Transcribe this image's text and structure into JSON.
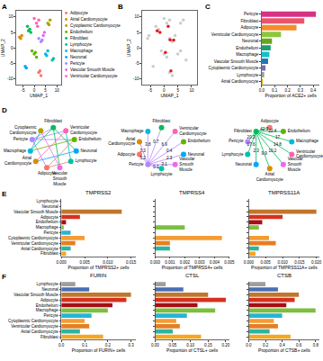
{
  "chart_data": [
    {
      "panel": "A",
      "type": "scatter",
      "xlabel": "UMAP_1",
      "ylabel": "UMAP_2",
      "xlim": [
        -8,
        12
      ],
      "ylim": [
        -12,
        12
      ],
      "xticks": [
        -5,
        0,
        5,
        10
      ],
      "yticks": [
        -10,
        -5,
        0,
        5,
        10
      ],
      "legend": "right",
      "series": [
        {
          "name": "Adipocyte",
          "color": "#F8766D",
          "x": [
            2,
            3,
            2.5
          ],
          "y": [
            -8,
            -9,
            -7.5
          ]
        },
        {
          "name": "Atrial Cardiomyocyte",
          "color": "#DB8E00",
          "x": [
            -6,
            -5.5,
            -6.5
          ],
          "y": [
            3,
            4,
            3.5
          ]
        },
        {
          "name": "Cytoplasmic Cardiomyocyte",
          "color": "#AEA200",
          "x": [
            6,
            7,
            6.5
          ],
          "y": [
            8,
            9,
            7.5
          ]
        },
        {
          "name": "Endothelium",
          "color": "#64B200",
          "x": [
            0,
            1,
            -1,
            0.5
          ],
          "y": [
            -2,
            -3,
            -1,
            -1.5
          ]
        },
        {
          "name": "Fibroblast",
          "color": "#00BD5C",
          "x": [
            -2,
            -3,
            -1.5,
            -2.5
          ],
          "y": [
            6,
            7,
            5,
            5.5
          ]
        },
        {
          "name": "Lymphocyte",
          "color": "#00C1A7",
          "x": [
            8,
            8.5
          ],
          "y": [
            -4,
            -3.5
          ]
        },
        {
          "name": "Macrophage",
          "color": "#00BADE",
          "x": [
            5,
            6,
            5.5
          ],
          "y": [
            -2,
            -1,
            -2.5
          ]
        },
        {
          "name": "Neuronal",
          "color": "#00A6FF",
          "x": [
            -4,
            -3.5
          ],
          "y": [
            -6,
            -6.5
          ]
        },
        {
          "name": "Pericyte",
          "color": "#B385FF",
          "x": [
            3,
            2,
            3.5
          ],
          "y": [
            2,
            3,
            2.5
          ]
        },
        {
          "name": "Vascular Smooth Muscle",
          "color": "#EF67EB",
          "x": [
            4,
            4.5
          ],
          "y": [
            4,
            5
          ]
        },
        {
          "name": "Ventricular Cardiomyocyte",
          "color": "#FF63B6",
          "x": [
            1,
            2,
            0,
            1.5
          ],
          "y": [
            8,
            9,
            9.5,
            7
          ]
        }
      ]
    },
    {
      "panel": "B",
      "type": "scatter",
      "xlabel": "UMAP_1",
      "ylabel": "UMAP_2",
      "xlim": [
        -8,
        12
      ],
      "ylim": [
        -12,
        12
      ],
      "xticks": [
        -5,
        0,
        5,
        10
      ],
      "yticks": [
        -10,
        -5,
        0,
        5,
        10
      ],
      "series": [
        {
          "color": "#cccccc",
          "x": [
            2,
            3,
            -6,
            -5.5,
            6,
            7,
            0,
            1,
            -1,
            -2,
            -3,
            8,
            5,
            6,
            -4,
            3,
            2,
            4,
            1,
            2,
            0
          ],
          "y": [
            -8,
            -9,
            3,
            4,
            8,
            9,
            -2,
            -3,
            -1,
            6,
            7,
            -4,
            -2,
            -1,
            -6,
            2,
            3,
            4,
            8,
            9,
            9.5
          ]
        },
        {
          "color": "#e41a1c",
          "x": [
            2.5,
            -1.5,
            -2.5,
            3.5,
            2.2,
            1.5,
            0.5
          ],
          "y": [
            -7.5,
            5,
            5.5,
            2.5,
            2.6,
            7,
            -1.5
          ]
        }
      ]
    },
    {
      "panel": "C",
      "type": "bar",
      "orientation": "horizontal",
      "xlabel": "Proportion of ACE2+ cells",
      "categories": [
        "Pericyte",
        "Fibroblast",
        "Adipocyte",
        "Ventricular Cardiomyocyte",
        "Neuronal",
        "Endothelium",
        "Macrophage",
        "Vascular Smooth Muscle",
        "Cytoplasmic Cardiomyocyte",
        "Lymphocyte",
        "Atrial Cardiomyocyte"
      ],
      "values": [
        0.42,
        0.33,
        0.27,
        0.15,
        0.08,
        0.07,
        0.06,
        0.05,
        0.03,
        0.02,
        0.01
      ],
      "colors": [
        "#d63384",
        "#e8556b",
        "#f28e2b",
        "#8cc63f",
        "#66a61e",
        "#1b9e77",
        "#17becf",
        "#1f78b4",
        "#7570b3",
        "#9e9e9e",
        "#e6ab02"
      ],
      "xlim": [
        0,
        0.45
      ],
      "xticks": [
        {
          "value": 0,
          "label": "0.0"
        },
        0.1,
        0.2,
        0.3,
        0.4
      ]
    },
    {
      "panel": "D",
      "type": "network",
      "tick_labels": false,
      "data_labels": false,
      "nodes": [
        {
          "label": "Fibroblast",
          "color": "#00BD5C"
        },
        {
          "label": "Ventricular Cardiomyocyte",
          "color": "#FF63B6"
        },
        {
          "label": "Endothelium",
          "color": "#64B200"
        },
        {
          "label": "Neuronal",
          "color": "#00A6FF"
        },
        {
          "label": "Lymphocyte",
          "color": "#00C1A7"
        },
        {
          "label": "Vascular Smooth Muscle",
          "color": "#EF67EB"
        },
        {
          "label": "Adipocyte",
          "color": "#F8766D"
        },
        {
          "label": "Atrial Cardiomyocyte",
          "color": "#DB8E00"
        },
        {
          "label": "Macrophage",
          "color": "#00BADE"
        },
        {
          "label": "Pericyte",
          "color": "#B385FF"
        },
        {
          "label": "Cytoplasmic Cardiomyocyte",
          "color": "#AEA200"
        }
      ],
      "edges": [
        {
          "from": "Pericyte",
          "to": "Fibroblast"
        },
        {
          "from": "Pericyte",
          "to": "Adipocyte"
        },
        {
          "from": "Pericyte",
          "to": "Endothelium"
        },
        {
          "from": "Pericyte",
          "to": "Ventricular Cardiomyocyte"
        },
        {
          "from": "Fibroblast",
          "to": "Macrophage"
        },
        {
          "from": "Fibroblast",
          "to": "Neuronal"
        },
        {
          "from": "Fibroblast",
          "to": "Vascular Smooth Muscle"
        },
        {
          "from": "Adipocyte",
          "to": "Endothelium"
        },
        {
          "from": "Adipocyte",
          "to": "Lymphocyte"
        },
        {
          "from": "Ventricular Cardiomyocyte",
          "to": "Atrial Cardiomyocyte"
        },
        {
          "from": "Endothelium",
          "to": "Macrophage"
        },
        {
          "from": "Macrophage",
          "to": "Cytoplasmic Cardiomyocyte"
        },
        {
          "from": "Neuronal",
          "to": "Atrial Cardiomyocyte"
        },
        {
          "from": "Vascular Smooth Muscle",
          "to": "Cytoplasmic Cardiomyocyte"
        },
        {
          "from": "Lymphocyte",
          "to": "Ventricular Cardiomyocyte"
        }
      ]
    },
    {
      "type": "network",
      "tick_labels": false,
      "data_labels": true,
      "nodes": [
        {
          "label": "Fibroblast",
          "color": "#00BD5C"
        },
        {
          "label": "Ventricular Cardiomyocyte",
          "color": "#FF63B6"
        },
        {
          "label": "Endothelium",
          "color": "#64B200"
        },
        {
          "label": "Neuronal",
          "color": "#00A6FF"
        },
        {
          "label": "Vascular Smooth Muscle",
          "color": "#EF67EB"
        },
        {
          "label": "Lymphocyte",
          "color": "#00C1A7"
        },
        {
          "label": "Pericyte",
          "color": "#B385FF"
        },
        {
          "label": "Adipocyte",
          "color": "#F8766D"
        },
        {
          "label": "Atrial Cardiomyocyte",
          "color": "#DB8E00"
        },
        {
          "label": "Macrophage",
          "color": "#00BADE"
        }
      ],
      "edges": [
        {
          "from": "Pericyte",
          "to": "Fibroblast",
          "value": 0.7
        },
        {
          "from": "Pericyte",
          "to": "Ventricular Cardiomyocyte",
          "value": 6.9
        },
        {
          "from": "Pericyte",
          "to": "Endothelium",
          "value": 0.4
        },
        {
          "from": "Pericyte",
          "to": "Neuronal",
          "value": 2.3
        },
        {
          "from": "Pericyte",
          "to": "Vascular Smooth Muscle",
          "value": 3.1
        },
        {
          "from": "Pericyte",
          "to": "Lymphocyte",
          "value": 0.3
        },
        {
          "from": "Pericyte",
          "to": "Adipocyte",
          "value": 5.2
        },
        {
          "from": "Pericyte",
          "to": "Atrial Cardiomyocyte",
          "value": 3.3
        },
        {
          "from": "Pericyte",
          "to": "Macrophage",
          "value": 3.8
        }
      ]
    },
    {
      "type": "network",
      "tick_labels": false,
      "data_labels": true,
      "nodes": [
        {
          "label": "Adipocyte",
          "color": "#F8766D"
        },
        {
          "label": "Endothelium",
          "color": "#64B200"
        },
        {
          "label": "Macrophage",
          "color": "#00BADE"
        },
        {
          "label": "Ventricular Cardiomyocyte",
          "color": "#FF63B6"
        },
        {
          "label": "Vascular Smooth Muscle",
          "color": "#EF67EB"
        },
        {
          "label": "Atrial Cardiomyocyte",
          "color": "#DB8E00"
        },
        {
          "label": "Neuronal",
          "color": "#00A6FF"
        },
        {
          "label": "Lymphocyte",
          "color": "#00C1A7"
        },
        {
          "label": "Pericyte",
          "color": "#B385FF"
        },
        {
          "label": "Fibroblast",
          "color": "#00BD5C"
        }
      ],
      "edges": [
        {
          "from": "Fibroblast",
          "to": "Adipocyte",
          "value": 42.3
        },
        {
          "from": "Fibroblast",
          "to": "Endothelium",
          "value": 22.4
        },
        {
          "from": "Fibroblast",
          "to": "Macrophage",
          "value": 17.0
        },
        {
          "from": "Fibroblast",
          "to": "Ventricular Cardiomyocyte",
          "value": 14.8
        },
        {
          "from": "Fibroblast",
          "to": "Vascular Smooth Muscle",
          "value": 10.2
        },
        {
          "from": "Fibroblast",
          "to": "Atrial Cardiomyocyte",
          "value": 9.9
        },
        {
          "from": "Fibroblast",
          "to": "Neuronal",
          "value": 2.3
        },
        {
          "from": "Fibroblast",
          "to": "Lymphocyte",
          "value": 17.6
        },
        {
          "from": "Fibroblast",
          "to": "Pericyte",
          "value": 20.3
        }
      ]
    },
    {
      "panel": "E",
      "type": "bar",
      "orientation": "horizontal",
      "title": "TMPRSS2",
      "xlabel": "Proportion of TMPRSS2+ cells",
      "categories": [
        "Lymphocyte",
        "Neuronal",
        "Vascular Smooth Muscle",
        "Adipocyte",
        "Endothelium",
        "Macrophage",
        "Pericyte",
        "Cytoplasmic Cardiomyocyte",
        "Ventricular Cardiomyocyte",
        "Atrial Cardiomyocyte",
        "Fibroblast"
      ],
      "values": [
        0,
        0,
        0.013,
        0.004,
        0.001,
        0.0005,
        0.002,
        0.005,
        0.003,
        0.002,
        0.001
      ],
      "colors": [
        "#9e9e9e",
        "#4a6fb5",
        "#c0762b",
        "#d7301f",
        "#a50f15",
        "#7cbf3f",
        "#25b5d6",
        "#f39c34",
        "#e67e22",
        "#2bb5a0",
        "#f5a623"
      ],
      "xlim": [
        0,
        0.016
      ],
      "xticks": [
        {
          "value": 0,
          "label": "0.000"
        },
        {
          "value": 0.005,
          "label": "0.005"
        },
        {
          "value": 0.01,
          "label": "0.010"
        },
        {
          "value": 0.015,
          "label": "0.015"
        }
      ]
    },
    {
      "type": "bar",
      "orientation": "horizontal",
      "title": "TMPRSS4",
      "xlabel": "Proportion of TMPRSS4+ cells",
      "tick_labels": "x",
      "categories": [
        "Lymphocyte",
        "Neuronal",
        "Vascular Smooth Muscle",
        "Adipocyte",
        "Endothelium",
        "Macrophage",
        "Pericyte",
        "Cytoplasmic Cardiomyocyte",
        "Ventricular Cardiomyocyte",
        "Atrial Cardiomyocyte",
        "Fibroblast"
      ],
      "values": [
        0,
        0,
        0,
        0,
        0,
        0.002,
        0,
        0.0045,
        0.001,
        0.001,
        0
      ],
      "colors": [
        "#9e9e9e",
        "#4a6fb5",
        "#c0762b",
        "#d7301f",
        "#a50f15",
        "#7cbf3f",
        "#25b5d6",
        "#f39c34",
        "#e67e22",
        "#2bb5a0",
        "#f5a623"
      ],
      "xlim": [
        0,
        0.005
      ],
      "xticks": [
        {
          "value": 0,
          "label": "0.000"
        },
        {
          "value": 0.001,
          "label": "0.001"
        },
        {
          "value": 0.002,
          "label": "0.002"
        },
        {
          "value": 0.003,
          "label": "0.003"
        },
        {
          "value": 0.004,
          "label": "0.004"
        },
        {
          "value": 0.005,
          "label": "0.005"
        }
      ]
    },
    {
      "type": "bar",
      "orientation": "horizontal",
      "title": "TMPRSS11A",
      "xlabel": "Proportion of TMPRSS11A+ cells",
      "tick_labels": "x",
      "categories": [
        "Lymphocyte",
        "Neuronal",
        "Vascular Smooth Muscle",
        "Adipocyte",
        "Endothelium",
        "Macrophage",
        "Pericyte",
        "Cytoplasmic Cardiomyocyte",
        "Ventricular Cardiomyocyte",
        "Atrial Cardiomyocyte",
        "Fibroblast"
      ],
      "values": [
        0,
        0,
        0.02,
        0.01,
        0.004,
        0.003,
        0,
        0.006,
        0.008,
        0.003,
        0.002
      ],
      "colors": [
        "#9e9e9e",
        "#4a6fb5",
        "#c0762b",
        "#d7301f",
        "#a50f15",
        "#7cbf3f",
        "#25b5d6",
        "#f39c34",
        "#e67e22",
        "#2bb5a0",
        "#f5a623"
      ],
      "xlim": [
        0,
        0.021
      ],
      "xticks": [
        {
          "value": 0,
          "label": "0.000"
        },
        {
          "value": 0.005,
          "label": "0.005"
        },
        {
          "value": 0.01,
          "label": "0.010"
        },
        {
          "value": 0.015,
          "label": "0.015"
        },
        {
          "value": 0.02,
          "label": "0.020"
        }
      ]
    },
    {
      "panel": "F",
      "type": "bar",
      "orientation": "horizontal",
      "title": "FURIN",
      "xlabel": "Proportion of FURIN+ cells",
      "categories": [
        "Lymphocyte",
        "Neuronal",
        "Vascular Smooth Muscle",
        "Adipocyte",
        "Endothelium",
        "Macrophage",
        "Pericyte",
        "Cytoplasmic Cardiomyocyte",
        "Ventricular Cardiomyocyte",
        "Atrial Cardiomyocyte",
        "Fibroblast"
      ],
      "values": [
        0.06,
        0.12,
        0.3,
        0.28,
        0.22,
        0.2,
        0.13,
        0.1,
        0.12,
        0.08,
        0.18
      ],
      "colors": [
        "#9e9e9e",
        "#4a6fb5",
        "#c0762b",
        "#d7301f",
        "#a50f15",
        "#7cbf3f",
        "#25b5d6",
        "#f39c34",
        "#e67e22",
        "#2bb5a0",
        "#f5a623"
      ],
      "xlim": [
        0,
        0.32
      ],
      "xticks": [
        {
          "value": 0,
          "label": "0.0"
        },
        0.1,
        0.2,
        0.3
      ]
    },
    {
      "type": "bar",
      "orientation": "horizontal",
      "title": "CTSL",
      "xlabel": "Proportion of CTSL+ cells",
      "tick_labels": "x",
      "categories": [
        "Lymphocyte",
        "Neuronal",
        "Vascular Smooth Muscle",
        "Adipocyte",
        "Endothelium",
        "Macrophage",
        "Pericyte",
        "Cytoplasmic Cardiomyocyte",
        "Ventricular Cardiomyocyte",
        "Atrial Cardiomyocyte",
        "Fibroblast"
      ],
      "values": [
        0.03,
        0.08,
        0.15,
        0.2,
        0.12,
        0.17,
        0.09,
        0.06,
        0.07,
        0.05,
        0.13
      ],
      "colors": [
        "#9e9e9e",
        "#4a6fb5",
        "#c0762b",
        "#d7301f",
        "#a50f15",
        "#7cbf3f",
        "#25b5d6",
        "#f39c34",
        "#e67e22",
        "#2bb5a0",
        "#f5a623"
      ],
      "xlim": [
        0,
        0.21
      ],
      "xticks": [
        {
          "value": 0,
          "label": "0.00"
        },
        0.05,
        {
          "value": 0.1,
          "label": "0.10"
        },
        0.15,
        {
          "value": 0.2,
          "label": "0.20"
        }
      ]
    },
    {
      "type": "bar",
      "orientation": "horizontal",
      "title": "CTSB",
      "xlabel": "Proportion of CTSB+ cells",
      "tick_labels": "x",
      "categories": [
        "Lymphocyte",
        "Neuronal",
        "Vascular Smooth Muscle",
        "Adipocyte",
        "Endothelium",
        "Macrophage",
        "Pericyte",
        "Cytoplasmic Cardiomyocyte",
        "Ventricular Cardiomyocyte",
        "Atrial Cardiomyocyte",
        "Fibroblast"
      ],
      "values": [
        0.2,
        0.35,
        0.6,
        0.55,
        0.45,
        0.8,
        0.4,
        0.3,
        0.35,
        0.25,
        0.5
      ],
      "colors": [
        "#9e9e9e",
        "#4a6fb5",
        "#c0762b",
        "#d7301f",
        "#a50f15",
        "#7cbf3f",
        "#25b5d6",
        "#f39c34",
        "#e67e22",
        "#2bb5a0",
        "#f5a623"
      ],
      "xlim": [
        0,
        0.85
      ],
      "xticks": [
        {
          "value": 0,
          "label": "0.0"
        },
        0.2,
        0.4,
        0.6,
        0.8
      ]
    }
  ]
}
